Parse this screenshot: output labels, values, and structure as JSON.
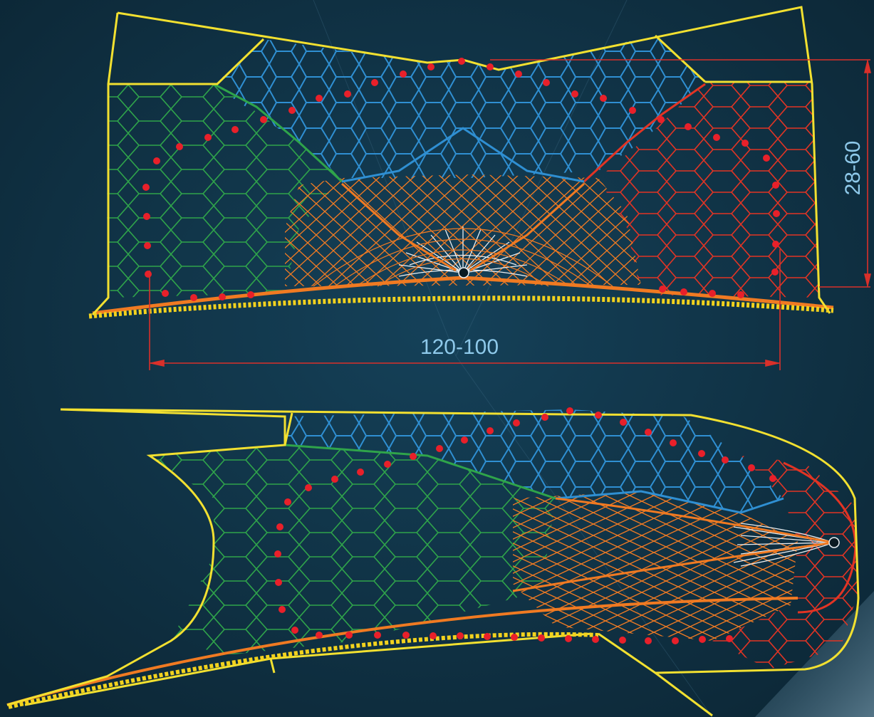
{
  "dimensions": {
    "height_label": "28-60",
    "width_label": "120-100"
  },
  "colors": {
    "background": "#0f3043",
    "frame": "#f2e030",
    "rope": "#f2d21e",
    "blue_mesh": "#2f8fd2",
    "green_mesh": "#2fa44a",
    "orange_mesh": "#f07a22",
    "red_mesh": "#e23424",
    "white_mesh": "#e8eef2",
    "floats": "#e8202a",
    "dimension_line": "#d9302a",
    "dimension_text": "#8ec9ea"
  },
  "icons": {
    "float": "float-marker-icon",
    "cod_end": "cod-end-icon"
  }
}
